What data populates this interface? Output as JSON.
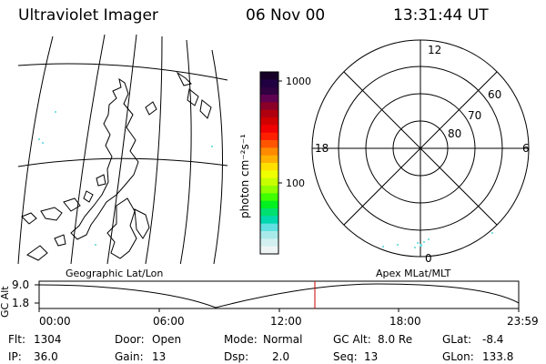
{
  "header": {
    "title": "Ultraviolet Imager",
    "date": "06 Nov 00",
    "time": "13:31:44 UT"
  },
  "colorbar": {
    "label": "photon cm⁻²s⁻¹",
    "ticks": [
      "1000",
      "100"
    ],
    "colors": [
      "#160028",
      "#200040",
      "#300040",
      "#600050",
      "#8a0028",
      "#b00010",
      "#d00000",
      "#f00000",
      "#ff2000",
      "#ff5500",
      "#ff8a00",
      "#ffb000",
      "#ffe000",
      "#f0ff00",
      "#c8ff00",
      "#90ff00",
      "#40ff00",
      "#00f020",
      "#00e070",
      "#00d8b0",
      "#60e0e0",
      "#a8eaea",
      "#d2f0f0",
      "#eef4f4"
    ]
  },
  "polar": {
    "clock_labels": {
      "top": "12",
      "left": "18",
      "right": "6",
      "bottom": "0"
    },
    "lat_labels": [
      "60",
      "70",
      "80"
    ]
  },
  "panels": {
    "left_label": "Geographic Lat/Lon",
    "right_label": "Apex MLat/MLT"
  },
  "altitude_plot": {
    "axis_label": "GC Alt",
    "y_ticks": [
      "9.0",
      "1.8"
    ],
    "time_ticks": [
      "00:00",
      "06:00",
      "12:00",
      "18:00",
      "23:59"
    ],
    "marker_color": "#cc0000"
  },
  "status": {
    "flt_label": "Flt:",
    "flt_value": "1304",
    "ip_label": "IP:",
    "ip_value": "36.0",
    "door_label": "Door:",
    "door_value": "Open",
    "gain_label": "Gain:",
    "gain_value": "13",
    "mode_label": "Mode:",
    "mode_value": "Normal",
    "dsp_label": "Dsp:",
    "dsp_value": "2.0",
    "gcalt_label": "GC Alt:",
    "gcalt_value": "8.0 Re",
    "seq_label": "Seq:",
    "seq_value": "13",
    "glat_label": "GLat:",
    "glat_value": "-8.4",
    "glon_label": "GLon:",
    "glon_value": "133.8"
  }
}
